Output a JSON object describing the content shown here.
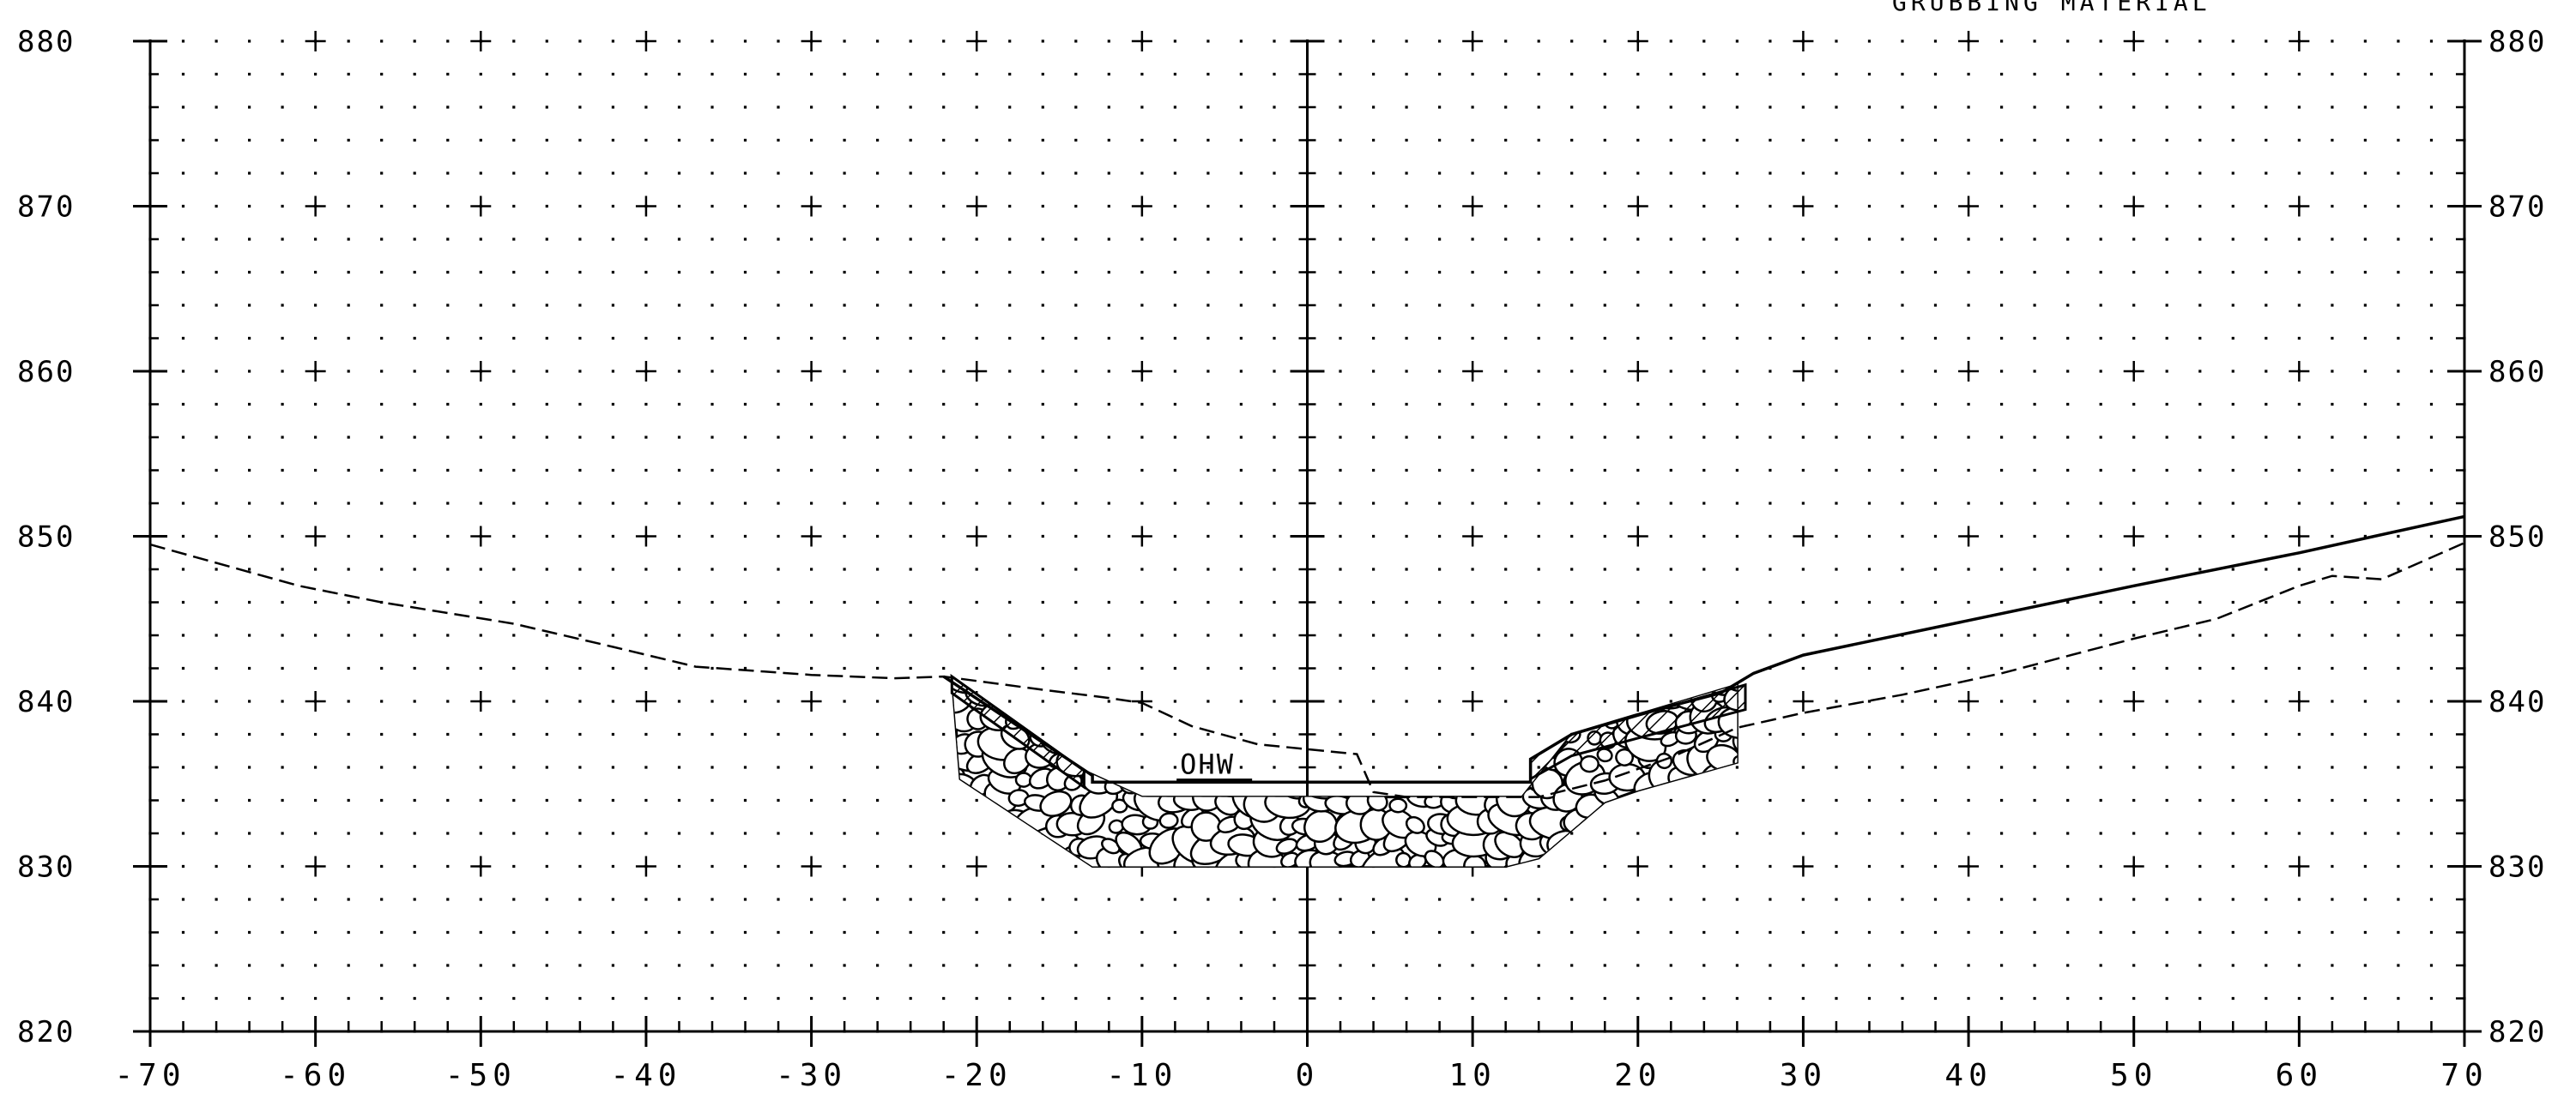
{
  "chart_data": {
    "type": "line",
    "x_ticks": [
      "-70",
      "-60",
      "-50",
      "-40",
      "-30",
      "-20",
      "-10",
      "0",
      "10",
      "20",
      "30",
      "40",
      "50",
      "60",
      "70"
    ],
    "y_ticks": [
      "820",
      "830",
      "840",
      "850",
      "860",
      "870",
      "880"
    ],
    "xlim": [
      -70,
      70
    ],
    "ylim": [
      820,
      880
    ],
    "grid": "dotted, 2-unit spacing, with crosses every 10 units",
    "note_top": "GRUBBING MATERIAL",
    "ohw_label": "OHW",
    "ohw_elevation": 835.1,
    "proposed_grade": {
      "x": [
        -22,
        -13,
        -13,
        13.5,
        13.5,
        16,
        20,
        25,
        27,
        30,
        40,
        50,
        60,
        70
      ],
      "y": [
        841.5,
        835.5,
        835.1,
        835.1,
        836.5,
        838,
        839.2,
        840.5,
        841.7,
        842.8,
        844.9,
        847,
        849,
        851.2
      ]
    },
    "existing_ground": {
      "x": [
        -70,
        -61,
        -56,
        -48,
        -42,
        -37,
        -30,
        -25,
        -22,
        -16,
        -12,
        -10,
        -7,
        -3,
        1,
        3,
        4,
        6,
        10,
        14,
        18,
        22,
        26,
        30,
        36,
        42,
        50,
        55,
        60,
        62,
        65,
        70
      ],
      "y": [
        849.5,
        847,
        846,
        844.7,
        843.3,
        842.1,
        841.6,
        841.4,
        841.5,
        840.7,
        840.2,
        839.9,
        838.5,
        837.4,
        837,
        836.8,
        834.5,
        834.2,
        834.2,
        834.2,
        835.2,
        836.6,
        838.4,
        839.3,
        840.4,
        841.7,
        843.8,
        845,
        847,
        847.6,
        847.4,
        849.6
      ]
    },
    "riprap": {
      "outer_x": [
        -21.5,
        -13.5,
        -10,
        13,
        16,
        26,
        26,
        20,
        18,
        14,
        12,
        -10,
        -13,
        -21
      ],
      "outer_y": [
        841.5,
        835.8,
        834.2,
        834.2,
        838,
        841,
        836.3,
        834.6,
        833.9,
        830.5,
        830,
        830,
        830,
        835.3
      ]
    },
    "topsoil_left": {
      "x": [
        -21.5,
        -13.5,
        -13.5,
        -21.5
      ],
      "y": [
        841.5,
        835.8,
        834.8,
        840.5
      ]
    },
    "topsoil_right": {
      "x": [
        13.5,
        16,
        26.5,
        26.5,
        16,
        13.5
      ],
      "y": [
        836.5,
        838,
        841,
        839.5,
        836.7,
        835.3
      ]
    }
  }
}
